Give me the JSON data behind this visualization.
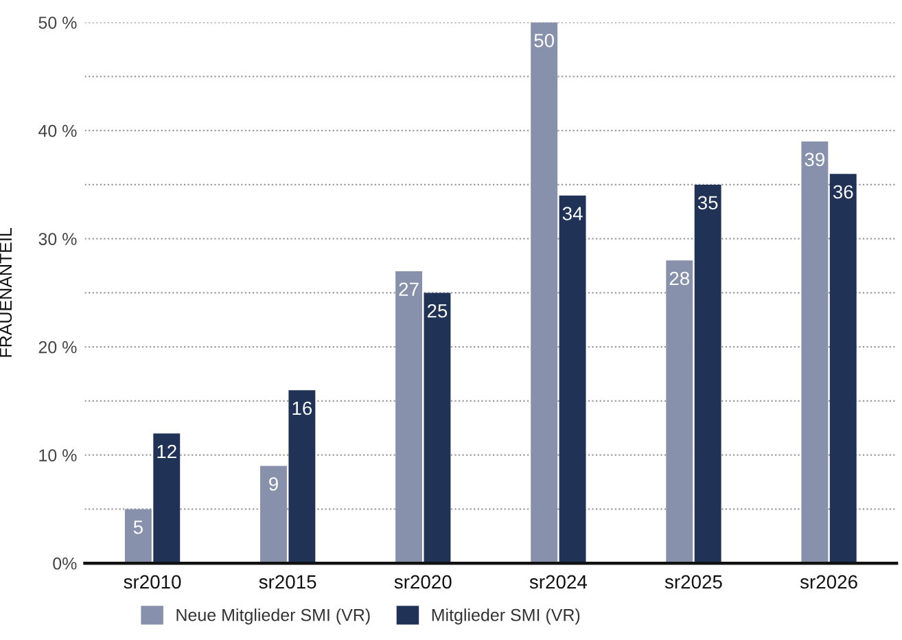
{
  "chart_data": {
    "type": "bar",
    "ylabel": "FRAUENANTEIL",
    "categories": [
      "sr2010",
      "sr2015",
      "sr2020",
      "sr2024",
      "sr2025",
      "sr2026"
    ],
    "series": [
      {
        "name": "Neue Mitglieder SMI (VR)",
        "color": "#8891ab",
        "values": [
          5,
          9,
          27,
          50,
          28,
          39
        ]
      },
      {
        "name": "Mitglieder SMI (VR)",
        "color": "#213257",
        "values": [
          12,
          16,
          25,
          34,
          35,
          36
        ]
      }
    ],
    "ylim": [
      0,
      50
    ],
    "yticks": [
      {
        "value": 0,
        "label": "0%"
      },
      {
        "value": 5,
        "label": null
      },
      {
        "value": 10,
        "label": "10 %"
      },
      {
        "value": 15,
        "label": null
      },
      {
        "value": 20,
        "label": "20 %"
      },
      {
        "value": 25,
        "label": null
      },
      {
        "value": 30,
        "label": "30 %"
      },
      {
        "value": 35,
        "label": null
      },
      {
        "value": 40,
        "label": "40 %"
      },
      {
        "value": 45,
        "label": null
      },
      {
        "value": 50,
        "label": "50 %"
      }
    ],
    "grid": "y",
    "legend": "bottom",
    "data_labels": true
  }
}
